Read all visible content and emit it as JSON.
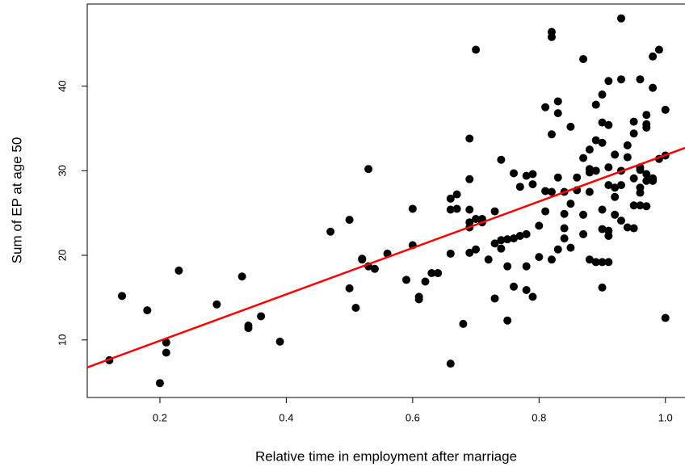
{
  "chart_data": {
    "type": "scatter",
    "xlabel": "Relative time in employment after marriage",
    "ylabel": "Sum of EP at age 50",
    "color": "#000000",
    "xlim": [
      0.085,
      1.031
    ],
    "ylim": [
      3.2,
      49.7
    ],
    "xticks": [
      0.2,
      0.4,
      0.6,
      0.8,
      {
        "value": 1.0,
        "label": "1.0"
      }
    ],
    "yticks": [
      10,
      20,
      30,
      40
    ],
    "x": [
      0.12,
      0.14,
      0.18,
      0.2,
      0.21,
      0.21,
      0.23,
      0.29,
      0.33,
      0.34,
      0.34,
      0.36,
      0.39,
      0.47,
      0.5,
      0.5,
      0.51,
      0.52,
      0.52,
      0.53,
      0.53,
      0.54,
      0.56,
      0.59,
      0.6,
      0.6,
      0.61,
      0.61,
      0.62,
      0.63,
      0.64,
      0.66,
      0.66,
      0.66,
      0.66,
      0.67,
      0.67,
      0.68,
      0.69,
      0.69,
      0.69,
      0.69,
      0.69,
      0.69,
      0.7,
      0.7,
      0.7,
      0.71,
      0.71,
      0.72,
      0.73,
      0.73,
      0.73,
      0.74,
      0.74,
      0.74,
      0.75,
      0.75,
      0.75,
      0.76,
      0.76,
      0.76,
      0.77,
      0.77,
      0.78,
      0.78,
      0.78,
      0.78,
      0.79,
      0.79,
      0.79,
      0.8,
      0.8,
      0.81,
      0.81,
      0.81,
      0.82,
      0.82,
      0.82,
      0.82,
      0.82,
      0.83,
      0.83,
      0.83,
      0.83,
      0.84,
      0.84,
      0.84,
      0.84,
      0.85,
      0.85,
      0.85,
      0.86,
      0.86,
      0.87,
      0.87,
      0.87,
      0.87,
      0.88,
      0.88,
      0.88,
      0.88,
      0.88,
      0.89,
      0.89,
      0.89,
      0.89,
      0.9,
      0.9,
      0.9,
      0.9,
      0.9,
      0.9,
      0.9,
      0.91,
      0.91,
      0.91,
      0.91,
      0.91,
      0.91,
      0.91,
      0.92,
      0.92,
      0.92,
      0.92,
      0.93,
      0.93,
      0.93,
      0.93,
      0.93,
      0.94,
      0.94,
      0.94,
      0.95,
      0.95,
      0.95,
      0.95,
      0.95,
      0.96,
      0.96,
      0.96,
      0.96,
      0.96,
      0.96,
      0.97,
      0.97,
      0.97,
      0.97,
      0.97,
      0.97,
      0.98,
      0.98,
      0.98,
      0.98,
      0.99,
      0.99,
      1.0,
      1.0,
      1.0
    ],
    "y": [
      7.6,
      15.2,
      13.5,
      4.9,
      9.7,
      8.5,
      18.2,
      14.2,
      17.5,
      11.4,
      11.7,
      12.8,
      9.8,
      22.8,
      24.2,
      16.1,
      13.8,
      19.6,
      19.5,
      30.2,
      18.7,
      18.4,
      20.2,
      17.1,
      25.5,
      21.2,
      14.8,
      15.1,
      16.9,
      17.9,
      17.9,
      20.2,
      25.4,
      7.2,
      26.7,
      27.2,
      25.5,
      11.9,
      25.4,
      29.0,
      23.3,
      20.3,
      33.8,
      23.9,
      20.7,
      44.3,
      24.3,
      23.9,
      24.3,
      19.5,
      25.2,
      21.4,
      14.9,
      21.8,
      31.3,
      20.8,
      21.9,
      18.7,
      12.3,
      16.3,
      29.7,
      22.0,
      28.1,
      22.3,
      18.7,
      29.4,
      15.9,
      22.5,
      29.6,
      15.1,
      28.4,
      23.5,
      19.8,
      37.5,
      25.2,
      27.6,
      19.5,
      45.8,
      46.4,
      27.5,
      34.3,
      29.2,
      20.7,
      38.2,
      36.8,
      24.9,
      23.2,
      27.5,
      22.0,
      26.1,
      20.9,
      35.2,
      27.7,
      29.2,
      31.5,
      22.5,
      24.8,
      43.2,
      30.2,
      29.8,
      32.5,
      19.5,
      27.5,
      37.8,
      19.2,
      33.6,
      30.0,
      23.1,
      19.2,
      39.0,
      35.7,
      16.2,
      25.4,
      33.3,
      40.6,
      28.3,
      22.3,
      22.9,
      30.4,
      19.2,
      35.4,
      26.9,
      31.9,
      24.8,
      28.0,
      48.0,
      40.8,
      30.0,
      24.1,
      28.3,
      31.6,
      23.3,
      33.0,
      34.4,
      29.1,
      25.9,
      23.2,
      35.8,
      28.0,
      30.4,
      40.8,
      25.9,
      30.1,
      27.4,
      36.6,
      35.5,
      29.6,
      25.8,
      35.1,
      28.8,
      43.5,
      29.1,
      39.8,
      28.8,
      44.3,
      31.4,
      37.2,
      12.6,
      31.8
    ],
    "fit_line": {
      "color": "#ff0000",
      "x": [
        0.085,
        1.031
      ],
      "y": [
        6.75,
        32.7
      ]
    }
  }
}
